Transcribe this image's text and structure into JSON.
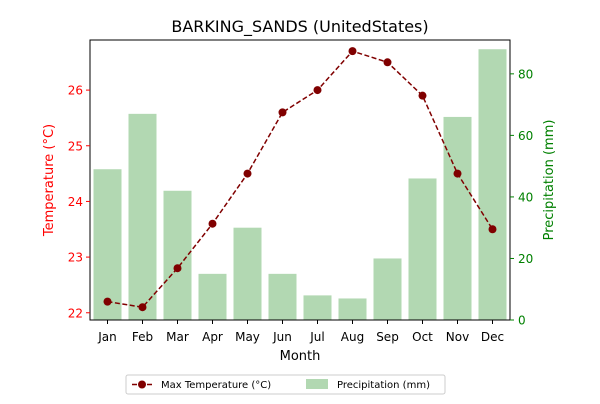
{
  "chart_data": {
    "type": "bar+line",
    "title": "BARKING_SANDS (UnitedStates)",
    "xlabel": "Month",
    "ylabel_left": "Temperature (°C)",
    "ylabel_right": "Precipitation (mm)",
    "categories": [
      "Jan",
      "Feb",
      "Mar",
      "Apr",
      "May",
      "Jun",
      "Jul",
      "Aug",
      "Sep",
      "Oct",
      "Nov",
      "Dec"
    ],
    "ylim_left": [
      21.87,
      26.9
    ],
    "yticks_left": [
      22,
      23,
      24,
      25,
      26
    ],
    "ylim_right": [
      0,
      91
    ],
    "yticks_right": [
      0,
      20,
      40,
      60,
      80
    ],
    "grid": false,
    "legend_position": "bottom-center",
    "colors": {
      "temperature": "#800000",
      "precipitation": "#b2d8b2",
      "left_axis": "#ff0000",
      "right_axis": "#008000"
    },
    "series": [
      {
        "name": "Max Temperature (°C)",
        "kind": "line",
        "axis": "left",
        "values": [
          22.2,
          22.1,
          22.8,
          23.6,
          24.5,
          25.6,
          26.0,
          26.7,
          26.5,
          25.9,
          24.5,
          23.5
        ]
      },
      {
        "name": "Precipitation (mm)",
        "kind": "bar",
        "axis": "right",
        "values": [
          49,
          67,
          42,
          15,
          30,
          15,
          8,
          7,
          20,
          46,
          66,
          88
        ]
      }
    ]
  }
}
